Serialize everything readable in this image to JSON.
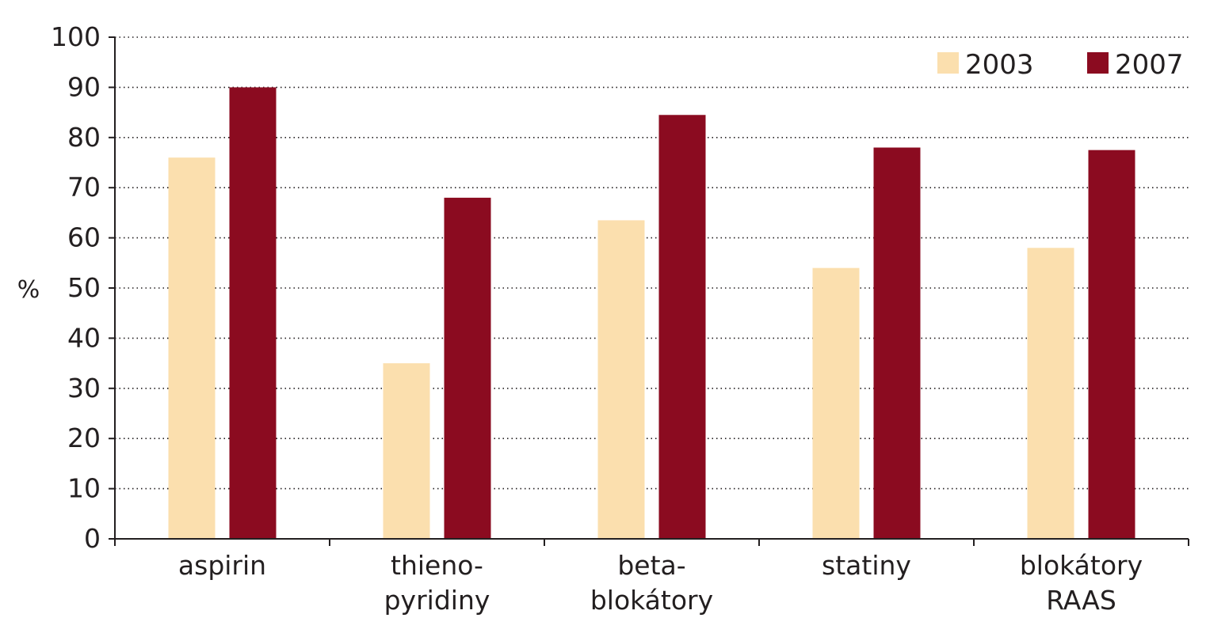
{
  "chart_data": {
    "type": "bar",
    "title": "",
    "xlabel": "",
    "ylabel": "%",
    "ylim": [
      0,
      100
    ],
    "yticks": [
      0,
      10,
      20,
      30,
      40,
      50,
      60,
      70,
      80,
      90,
      100
    ],
    "grid": "horizontal dotted",
    "legend": "top-right",
    "categories": [
      [
        "aspirin"
      ],
      [
        "thieno-",
        "pyridiny"
      ],
      [
        "beta-",
        "blokátory"
      ],
      [
        "statiny"
      ],
      [
        "blokátory",
        "RAAS"
      ]
    ],
    "series": [
      {
        "name": "2003",
        "color": "#fbdfae",
        "values": [
          76,
          35,
          63.5,
          54,
          58
        ]
      },
      {
        "name": "2007",
        "color": "#8b0b20",
        "values": [
          90,
          68,
          84.5,
          78,
          77.5
        ]
      }
    ]
  }
}
